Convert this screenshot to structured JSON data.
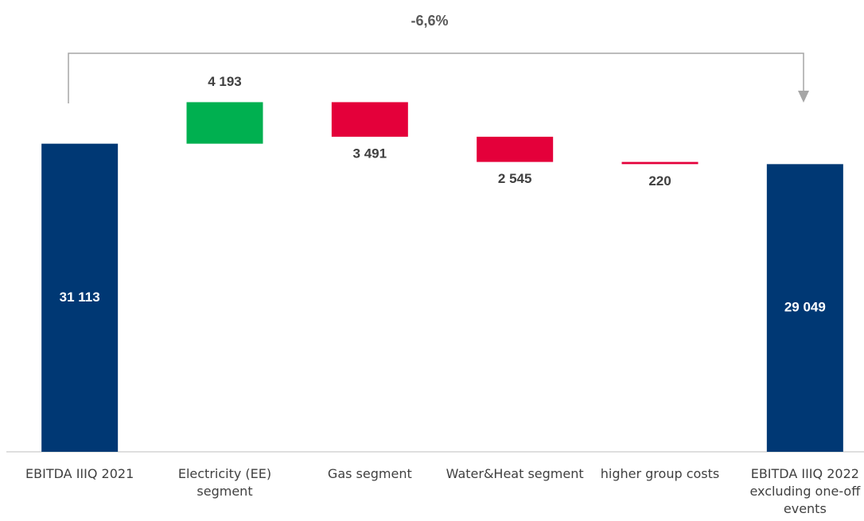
{
  "chart_data": {
    "type": "waterfall",
    "annotation": "-6,6%",
    "categories": [
      "EBITDA IIIQ 2021",
      "Electricity (EE) segment",
      "Gas segment",
      "Water&Heat segment",
      "higher group costs",
      "EBITDA IIIQ 2022 excluding one-off events"
    ],
    "values": [
      31113,
      4193,
      -3491,
      -2545,
      -220,
      29049
    ],
    "value_labels": [
      "31 113",
      "4 193",
      "3 491",
      "2 545",
      "220",
      "29 049"
    ],
    "measure": [
      "total",
      "relative",
      "relative",
      "relative",
      "relative",
      "total"
    ],
    "colors": {
      "total": "#003874",
      "increase": "#00b050",
      "decrease": "#e4003a"
    },
    "ylim": [
      0,
      40000
    ]
  }
}
